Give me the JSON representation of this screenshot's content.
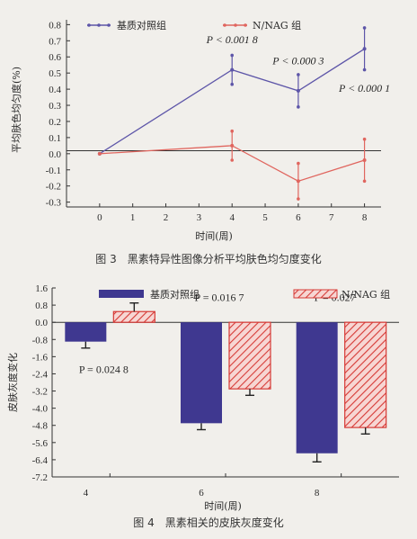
{
  "colors": {
    "control": "#5d55a8",
    "nag": "#e0655e",
    "bar_control": "#3f3890",
    "bar_nag_stroke": "#d63a36",
    "bar_nag_fill": "#f7d6d3"
  },
  "chart_data": [
    {
      "type": "line",
      "caption": "图 3　黑素特异性图像分析平均肤色均匀度变化",
      "xlabel": "时间(周)",
      "ylabel": "平均肤色均匀度(%)",
      "xlim": [
        -1,
        8.5
      ],
      "ylim": [
        -0.33,
        0.83
      ],
      "x_ticks": [
        0,
        1,
        2,
        3,
        4,
        5,
        6,
        7,
        8
      ],
      "y_ticks": [
        0.8,
        0.7,
        0.6,
        0.5,
        0.4,
        0.3,
        0.2,
        0.1,
        0.0,
        -0.1,
        -0.2,
        -0.3
      ],
      "y_tick_labels": [
        "0.8",
        "0.7",
        "0.6",
        "0.5",
        "0.4",
        "0.3",
        "0.2",
        "0.1",
        "0.0",
        "-0.1",
        "-0.2",
        "-0.3"
      ],
      "series": [
        {
          "name": "基质对照组",
          "x": [
            0,
            4,
            6,
            8
          ],
          "y": [
            0.0,
            0.52,
            0.39,
            0.65
          ],
          "err": [
            0,
            0.09,
            0.1,
            0.13
          ]
        },
        {
          "name": "N/NAG 组",
          "x": [
            0,
            4,
            6,
            8
          ],
          "y": [
            0.0,
            0.05,
            -0.17,
            -0.04
          ],
          "err": [
            0,
            0.09,
            0.11,
            0.13
          ]
        }
      ],
      "annotations": [
        {
          "text": "P < 0.001 8",
          "x": 4.0,
          "y": 0.685
        },
        {
          "text": "P < 0.000 3",
          "x": 6.0,
          "y": 0.555
        },
        {
          "text": "P < 0.000 1",
          "x": 8.0,
          "y": 0.385
        }
      ],
      "legend": "top"
    },
    {
      "type": "bar",
      "caption": "图 4　黑素相关的皮肤灰度变化",
      "xlabel": "时间(周)",
      "ylabel": "皮肤灰度变化",
      "ylim": [
        -7.2,
        1.6
      ],
      "y_ticks": [
        1.6,
        0.8,
        0.0,
        -0.8,
        -1.6,
        -2.4,
        -3.2,
        -4.0,
        -4.8,
        -5.6,
        -6.4,
        -7.2
      ],
      "y_tick_labels": [
        "1.6",
        "0.8",
        "0.0",
        "-0.8",
        "-1.6",
        "-2.4",
        "-3.2",
        "-4.0",
        "-4.8",
        "-5.6",
        "-6.4",
        "-7.2"
      ],
      "categories": [
        "4",
        "6",
        "8"
      ],
      "series": [
        {
          "name": "基质对照组",
          "values": [
            -0.9,
            -4.7,
            -6.1
          ],
          "err": [
            0.3,
            0.3,
            0.4
          ]
        },
        {
          "name": "N/NAG 组",
          "values": [
            0.5,
            -3.1,
            -4.9
          ],
          "err": [
            0.4,
            0.3,
            0.3
          ]
        }
      ],
      "annotations": [
        {
          "text": "P = 0.024 8",
          "category": 0,
          "y": -2.35
        },
        {
          "text": "P = 0.016 7",
          "category": 1,
          "y": 1.0
        },
        {
          "text": "P = 0.027",
          "category": 2,
          "y": 1.0
        }
      ],
      "legend": "top"
    }
  ]
}
